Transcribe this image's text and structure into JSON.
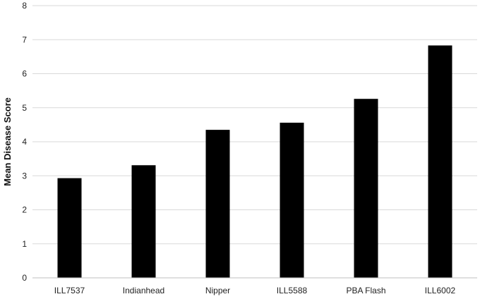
{
  "chart_data": {
    "type": "bar",
    "title": "",
    "xlabel": "",
    "ylabel": "Mean Disease Score",
    "categories": [
      "ILL7537",
      "Indianhead",
      "Nipper",
      "ILL5588",
      "PBA Flash",
      "ILL6002"
    ],
    "values": [
      2.93,
      3.31,
      4.35,
      4.56,
      5.26,
      6.83
    ],
    "ylim": [
      0,
      8
    ],
    "yticks": [
      "0",
      "1",
      "2",
      "3",
      "4",
      "5",
      "6",
      "7",
      "8"
    ],
    "grid": "horizontal",
    "legend": "none",
    "colors": {
      "bar": "#000000",
      "grid": "#d9d9d9",
      "axis": "#bfbfbf"
    }
  }
}
